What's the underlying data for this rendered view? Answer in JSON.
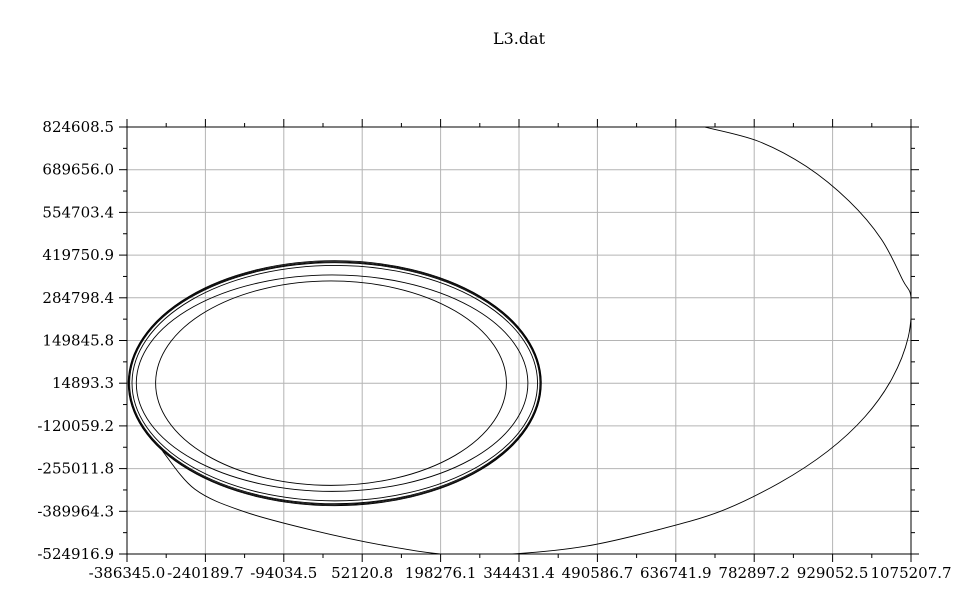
{
  "chart_data": {
    "type": "line",
    "title": "L3.dat",
    "xlabel": "",
    "ylabel": "",
    "grid": true,
    "legend": "none",
    "xlim": [
      -386345.0,
      1075207.7
    ],
    "ylim": [
      -524916.9,
      824608.5
    ],
    "x_ticks": [
      "-386345.0",
      "-240189.7",
      "-94034.5",
      "52120.8",
      "198276.1",
      "344431.4",
      "490586.7",
      "636741.9",
      "782897.2",
      "929052.5",
      "1075207.7"
    ],
    "y_ticks": [
      "824608.5",
      "689656.0",
      "554703.4",
      "419750.9",
      "284798.4",
      "149845.8",
      "14893.3",
      "-120059.2",
      "-255011.8",
      "-389964.3",
      "-524916.9"
    ],
    "series": [
      {
        "color": "#000000",
        "orbits": [
          {
            "cx": 1000,
            "cy": 15000,
            "rx": 385000,
            "ry": 387000
          },
          {
            "cx": 1000,
            "cy": 15000,
            "rx": 384000,
            "ry": 384000
          },
          {
            "cx": 1000,
            "cy": 15000,
            "rx": 382500,
            "ry": 381000
          },
          {
            "cx": 1000,
            "cy": 15000,
            "rx": 378000,
            "ry": 372000
          },
          {
            "cx": -4000,
            "cy": 15000,
            "rx": 365000,
            "ry": 342000
          },
          {
            "cx": -6000,
            "cy": 15000,
            "rx": 327000,
            "ry": 323000
          }
        ],
        "transfer_arc": {
          "cx": 360000,
          "cy": 290000,
          "rx": 715000,
          "ry": 815000,
          "points": [
            [
              690000,
              824608.5
            ],
            [
              790000,
              780000
            ],
            [
              880000,
              700000
            ],
            [
              960000,
              590000
            ],
            [
              1020000,
              470000
            ],
            [
              1060000,
              340000
            ],
            [
              1075207.7,
              284798.4
            ],
            [
              1070000,
              160000
            ],
            [
              1040000,
              30000
            ],
            [
              990000,
              -90000
            ],
            [
              920000,
              -200000
            ],
            [
              830000,
              -300000
            ],
            [
              720000,
              -390000
            ],
            [
              600000,
              -450000
            ],
            [
              470000,
              -500000
            ],
            [
              340000,
              -524000
            ],
            [
              220000,
              -528000
            ],
            [
              100000,
              -500000
            ],
            [
              -40000,
              -450000
            ],
            [
              -170000,
              -390000
            ],
            [
              -260000,
              -320000
            ],
            [
              -320000,
              -200000
            ]
          ]
        }
      }
    ]
  }
}
